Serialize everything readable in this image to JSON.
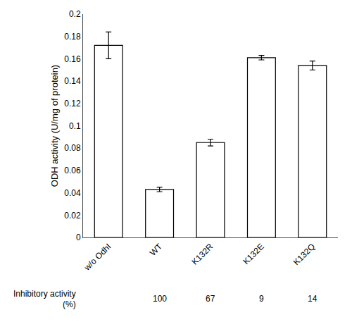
{
  "chart_data": {
    "type": "bar",
    "categories": [
      "w/o OdhI",
      "WT",
      "K132R",
      "K132E",
      "K132Q"
    ],
    "values": [
      0.172,
      0.043,
      0.085,
      0.161,
      0.154
    ],
    "errors": [
      0.012,
      0.002,
      0.003,
      0.002,
      0.004
    ],
    "color": "#ffffff",
    "y_label": "ODH activity (U/mg of protein)",
    "ylim": [
      0,
      0.2
    ],
    "yticks": [
      0,
      0.02,
      0.04,
      0.06,
      0.08,
      0.1,
      0.12,
      0.14,
      0.16,
      0.18,
      0.2
    ],
    "grid": false,
    "annotations": [
      {
        "text": "Inhibitory activity"
      },
      {
        "text": "(%)"
      }
    ],
    "inhibitory_values": [
      null,
      100,
      67,
      9,
      14
    ]
  }
}
